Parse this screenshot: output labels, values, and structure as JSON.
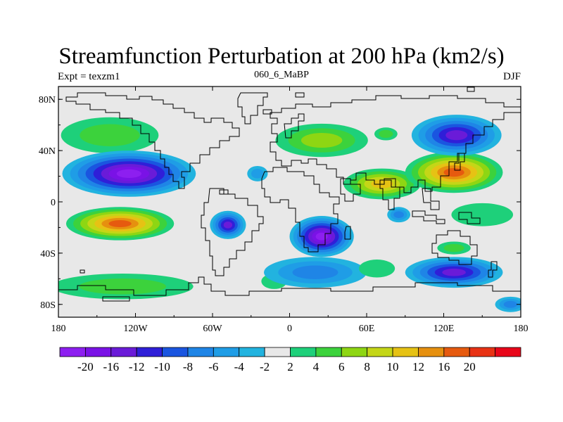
{
  "title": "Streamfunction Perturbation at 200 hPa (km2/s)",
  "left_label": "Expt = texzm1",
  "center_label": "060_6_MaBP",
  "right_label": "DJF",
  "map": {
    "projection": "cylindrical-equidistant",
    "lon_range": [
      -180,
      180
    ],
    "lat_range": [
      -90,
      90
    ],
    "background_color": "#e8e8e8",
    "coastline_color": "#000000",
    "y_ticks": [
      {
        "lat": 80,
        "label": "80N"
      },
      {
        "lat": 40,
        "label": "40N"
      },
      {
        "lat": 0,
        "label": "0"
      },
      {
        "lat": -40,
        "label": "40S"
      },
      {
        "lat": -80,
        "label": "80S"
      }
    ],
    "x_ticks": [
      {
        "lon": -180,
        "label": "180"
      },
      {
        "lon": -120,
        "label": "120W"
      },
      {
        "lon": -60,
        "label": "60W"
      },
      {
        "lon": 0,
        "label": "0"
      },
      {
        "lon": 60,
        "label": "60E"
      },
      {
        "lon": 120,
        "label": "120E"
      },
      {
        "lon": 180,
        "label": "180"
      }
    ],
    "blobs": [
      {
        "lon": -140,
        "lat": 52,
        "rx": 38,
        "ry": 14,
        "value": 6
      },
      {
        "lon": -125,
        "lat": 22,
        "rx": 52,
        "ry": 18,
        "value": -20
      },
      {
        "lon": -132,
        "lat": -17,
        "rx": 42,
        "ry": 13,
        "value": 20
      },
      {
        "lon": -48,
        "lat": -18,
        "rx": 14,
        "ry": 11,
        "value": -12
      },
      {
        "lon": -130,
        "lat": -66,
        "rx": 55,
        "ry": 10,
        "value": 6
      },
      {
        "lon": -12,
        "lat": -62,
        "rx": 10,
        "ry": 6,
        "value": 4
      },
      {
        "lon": 25,
        "lat": 48,
        "rx": 36,
        "ry": 13,
        "value": 8
      },
      {
        "lon": 75,
        "lat": 53,
        "rx": 9,
        "ry": 5,
        "value": 6
      },
      {
        "lon": -25,
        "lat": 22,
        "rx": 8,
        "ry": 6,
        "value": -4
      },
      {
        "lon": 72,
        "lat": 14,
        "rx": 30,
        "ry": 12,
        "value": 12
      },
      {
        "lon": 128,
        "lat": 23,
        "rx": 38,
        "ry": 16,
        "value": 20
      },
      {
        "lon": 130,
        "lat": 52,
        "rx": 35,
        "ry": 16,
        "value": -12
      },
      {
        "lon": 25,
        "lat": -27,
        "rx": 25,
        "ry": 16,
        "value": -20
      },
      {
        "lon": 20,
        "lat": -55,
        "rx": 40,
        "ry": 12,
        "value": -6
      },
      {
        "lon": 68,
        "lat": -52,
        "rx": 14,
        "ry": 7,
        "value": 4
      },
      {
        "lon": 85,
        "lat": -10,
        "rx": 9,
        "ry": 6,
        "value": -6
      },
      {
        "lon": 128,
        "lat": -36,
        "rx": 13,
        "ry": 5,
        "value": 6
      },
      {
        "lon": 128,
        "lat": -55,
        "rx": 38,
        "ry": 12,
        "value": -12
      },
      {
        "lon": 150,
        "lat": -10,
        "rx": 24,
        "ry": 9,
        "value": 4
      },
      {
        "lon": 172,
        "lat": -80,
        "rx": 12,
        "ry": 6,
        "value": -6
      }
    ]
  },
  "colorbar": {
    "colors": [
      "#8d1ff0",
      "#7a12e6",
      "#6a1bd8",
      "#2f1fd8",
      "#1a55e0",
      "#1f85e6",
      "#1f9de6",
      "#22b3df",
      "#e8e8e8",
      "#1ed07a",
      "#3cd23c",
      "#8ed613",
      "#c4d617",
      "#e6c214",
      "#e6900f",
      "#e65a0f",
      "#e83214",
      "#e8061a"
    ],
    "labels": [
      "-20",
      "-16",
      "-12",
      "-10",
      "-8",
      "-6",
      "-4",
      "-2",
      "2",
      "4",
      "6",
      "8",
      "10",
      "12",
      "16",
      "20"
    ]
  }
}
